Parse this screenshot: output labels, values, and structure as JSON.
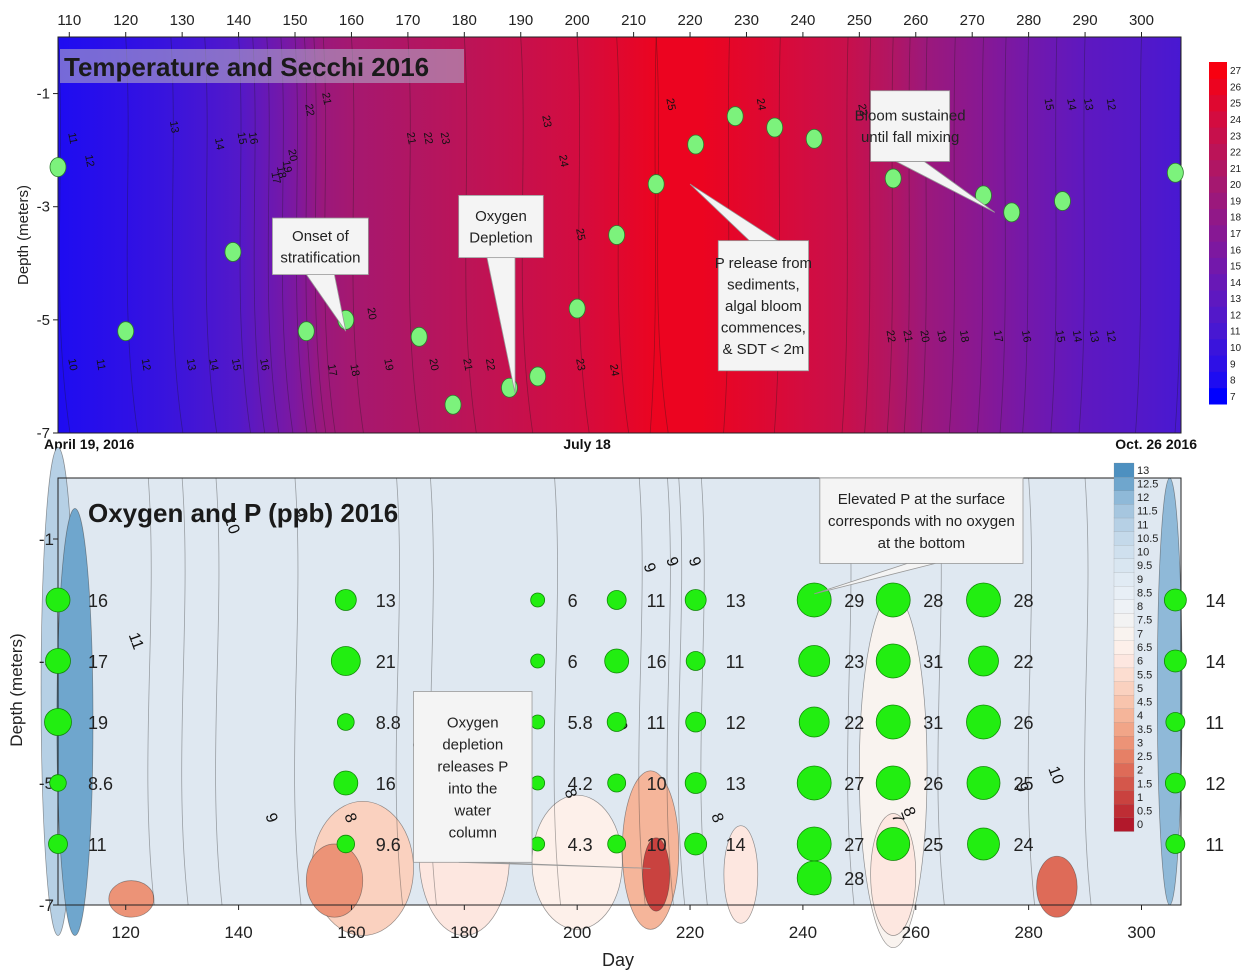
{
  "chart_data": [
    {
      "type": "heatmap",
      "title": "Temperature and Secchi 2016",
      "xlabel": "",
      "ylabel": "Depth (meters)",
      "xlim": [
        108,
        307
      ],
      "ylim": [
        -7,
        0
      ],
      "x_ticks": [
        110,
        120,
        130,
        140,
        150,
        160,
        170,
        180,
        190,
        200,
        210,
        220,
        230,
        240,
        250,
        260,
        270,
        280,
        290,
        300
      ],
      "y_ticks": [
        -1,
        -3,
        -5,
        -7
      ],
      "x_axis_position": "top",
      "date_labels": [
        {
          "x": 108,
          "text": "April 19, 2016"
        },
        {
          "x": 189,
          "text": "July 18"
        },
        {
          "x": 307,
          "text": "Oct. 26 2016"
        }
      ],
      "colorbar": {
        "values": [
          7,
          8,
          9,
          10,
          11,
          12,
          13,
          14,
          15,
          16,
          17,
          18,
          19,
          20,
          21,
          22,
          23,
          24,
          25,
          26,
          27
        ],
        "colors": [
          "#0000ff",
          "#1e0cf1",
          "#2e10e6",
          "#3a14dc",
          "#4818d2",
          "#5318c9",
          "#5e18c0",
          "#6818b6",
          "#7318ab",
          "#7d18a0",
          "#871894",
          "#911888",
          "#9b187c",
          "#a51870",
          "#b01664",
          "#bb1458",
          "#c7104c",
          "#d30c40",
          "#df0830",
          "#ec0420",
          "#f80010"
        ]
      },
      "temperature_profile": {
        "days": [
          108,
          120,
          128,
          140,
          150,
          155,
          160,
          170,
          180,
          190,
          200,
          207,
          214,
          222,
          232,
          240,
          248,
          256,
          262,
          272,
          280,
          290,
          300,
          307
        ],
        "surface_temp_c": [
          8,
          9,
          10,
          12,
          16,
          19,
          20,
          21,
          22,
          23,
          24,
          25,
          26,
          25.5,
          24.5,
          23.5,
          23,
          21,
          19,
          17,
          15,
          13,
          12,
          11
        ]
      },
      "secchi_points": [
        {
          "x": 108,
          "y": -2.3
        },
        {
          "x": 120,
          "y": -5.2
        },
        {
          "x": 139,
          "y": -3.8
        },
        {
          "x": 152,
          "y": -5.2
        },
        {
          "x": 159,
          "y": -5.0
        },
        {
          "x": 172,
          "y": -5.3
        },
        {
          "x": 178,
          "y": -6.5
        },
        {
          "x": 188,
          "y": -6.2
        },
        {
          "x": 193,
          "y": -6.0
        },
        {
          "x": 200,
          "y": -4.8
        },
        {
          "x": 207,
          "y": -3.5
        },
        {
          "x": 214,
          "y": -2.6
        },
        {
          "x": 221,
          "y": -1.9
        },
        {
          "x": 228,
          "y": -1.4
        },
        {
          "x": 235,
          "y": -1.6
        },
        {
          "x": 242,
          "y": -1.8
        },
        {
          "x": 256,
          "y": -2.5
        },
        {
          "x": 272,
          "y": -2.8
        },
        {
          "x": 277,
          "y": -3.1
        },
        {
          "x": 286,
          "y": -2.9
        },
        {
          "x": 306,
          "y": -2.4
        }
      ],
      "contour_labels": [
        {
          "x": 110,
          "y": -1.8,
          "text": "11"
        },
        {
          "x": 113,
          "y": -2.2,
          "text": "12"
        },
        {
          "x": 128,
          "y": -1.6,
          "text": "13"
        },
        {
          "x": 136,
          "y": -1.9,
          "text": "14"
        },
        {
          "x": 140,
          "y": -1.8,
          "text": "15"
        },
        {
          "x": 142,
          "y": -1.8,
          "text": "16"
        },
        {
          "x": 146,
          "y": -2.5,
          "text": "17"
        },
        {
          "x": 147,
          "y": -2.4,
          "text": "18"
        },
        {
          "x": 148,
          "y": -2.3,
          "text": "19"
        },
        {
          "x": 149,
          "y": -2.1,
          "text": "20"
        },
        {
          "x": 152,
          "y": -1.3,
          "text": "22"
        },
        {
          "x": 155,
          "y": -1.1,
          "text": "21"
        },
        {
          "x": 170,
          "y": -1.8,
          "text": "21"
        },
        {
          "x": 173,
          "y": -1.8,
          "text": "22"
        },
        {
          "x": 176,
          "y": -1.8,
          "text": "23"
        },
        {
          "x": 194,
          "y": -1.5,
          "text": "23"
        },
        {
          "x": 197,
          "y": -2.2,
          "text": "24"
        },
        {
          "x": 200,
          "y": -3.5,
          "text": "25"
        },
        {
          "x": 216,
          "y": -1.2,
          "text": "25"
        },
        {
          "x": 232,
          "y": -1.2,
          "text": "24"
        },
        {
          "x": 250,
          "y": -1.3,
          "text": "23"
        },
        {
          "x": 283,
          "y": -1.2,
          "text": "15"
        },
        {
          "x": 287,
          "y": -1.2,
          "text": "14"
        },
        {
          "x": 290,
          "y": -1.2,
          "text": "13"
        },
        {
          "x": 294,
          "y": -1.2,
          "text": "12"
        },
        {
          "x": 163,
          "y": -4.9,
          "text": "20"
        },
        {
          "x": 110,
          "y": -5.8,
          "text": "10"
        },
        {
          "x": 115,
          "y": -5.8,
          "text": "11"
        },
        {
          "x": 123,
          "y": -5.8,
          "text": "12"
        },
        {
          "x": 131,
          "y": -5.8,
          "text": "13"
        },
        {
          "x": 135,
          "y": -5.8,
          "text": "14"
        },
        {
          "x": 139,
          "y": -5.8,
          "text": "15"
        },
        {
          "x": 144,
          "y": -5.8,
          "text": "16"
        },
        {
          "x": 156,
          "y": -5.9,
          "text": "17"
        },
        {
          "x": 160,
          "y": -5.9,
          "text": "18"
        },
        {
          "x": 166,
          "y": -5.8,
          "text": "19"
        },
        {
          "x": 174,
          "y": -5.8,
          "text": "20"
        },
        {
          "x": 180,
          "y": -5.8,
          "text": "21"
        },
        {
          "x": 184,
          "y": -5.8,
          "text": "22"
        },
        {
          "x": 200,
          "y": -5.8,
          "text": "23"
        },
        {
          "x": 206,
          "y": -5.9,
          "text": "24"
        },
        {
          "x": 255,
          "y": -5.3,
          "text": "22"
        },
        {
          "x": 258,
          "y": -5.3,
          "text": "21"
        },
        {
          "x": 261,
          "y": -5.3,
          "text": "20"
        },
        {
          "x": 264,
          "y": -5.3,
          "text": "19"
        },
        {
          "x": 268,
          "y": -5.3,
          "text": "18"
        },
        {
          "x": 274,
          "y": -5.3,
          "text": "17"
        },
        {
          "x": 279,
          "y": -5.3,
          "text": "16"
        },
        {
          "x": 285,
          "y": -5.3,
          "text": "15"
        },
        {
          "x": 288,
          "y": -5.3,
          "text": "14"
        },
        {
          "x": 291,
          "y": -5.3,
          "text": "13"
        },
        {
          "x": 294,
          "y": -5.3,
          "text": "12"
        }
      ],
      "annotations": [
        {
          "text": [
            "Onset of",
            "stratification"
          ],
          "x0": 146,
          "y0": -3.2,
          "x1": 163,
          "y1": -4.2,
          "tip_x": 159,
          "tip_y": -5.2
        },
        {
          "text": [
            "Oxygen",
            "Depletion"
          ],
          "x0": 179,
          "y0": -2.8,
          "x1": 194,
          "y1": -3.9,
          "tip_x": 189,
          "tip_y": -6.3
        },
        {
          "text": [
            "P release from",
            "sediments,",
            "algal bloom",
            "commences,",
            "& SDT < 2m"
          ],
          "x0": 225,
          "y0": -3.6,
          "x1": 241,
          "y1": -5.9,
          "tip_x": 220,
          "tip_y": -2.6
        },
        {
          "text": [
            "Bloom sustained",
            "until fall mixing"
          ],
          "x0": 252,
          "y0": -0.95,
          "x1": 266,
          "y1": -2.2,
          "tip_x": 274,
          "tip_y": -3.1
        }
      ]
    },
    {
      "type": "heatmap",
      "title": "Oxygen and P (ppb) 2016",
      "xlabel": "Day",
      "ylabel": "Depth (meters)",
      "xlim": [
        108,
        307
      ],
      "ylim": [
        -7,
        0
      ],
      "x_ticks": [
        120,
        140,
        160,
        180,
        200,
        220,
        240,
        260,
        280,
        300
      ],
      "y_ticks": [
        -1,
        -3,
        -5,
        -7
      ],
      "colorbar": {
        "values": [
          0,
          0.5,
          1,
          1.5,
          2,
          2.5,
          3,
          3.5,
          4,
          4.5,
          5,
          5.5,
          6,
          6.5,
          7,
          7.5,
          8,
          8.5,
          9,
          9.5,
          10,
          10.5,
          11,
          11.5,
          12,
          12.5,
          13
        ],
        "colors": [
          "#b2182b",
          "#be2d34",
          "#c9423f",
          "#d4574b",
          "#de6b58",
          "#e68066",
          "#ec9377",
          "#f1a588",
          "#f5b59a",
          "#f8c4ad",
          "#fad1bf",
          "#fcddd0",
          "#fde7e0",
          "#fdf0ea",
          "#f9f3ef",
          "#f3f3f3",
          "#eef2f6",
          "#e8eff6",
          "#e1ebf4",
          "#d9e6f1",
          "#cfe0ee",
          "#c4d9ea",
          "#b6d0e5",
          "#a6c6df",
          "#8fb9d8",
          "#6fa6cd",
          "#4d90c0"
        ]
      },
      "p_points": [
        {
          "day": 108,
          "depth": -2,
          "value": 16
        },
        {
          "day": 108,
          "depth": -3,
          "value": 17
        },
        {
          "day": 108,
          "depth": -4,
          "value": 19
        },
        {
          "day": 108,
          "depth": -5,
          "value": 8.6
        },
        {
          "day": 108,
          "depth": -6,
          "value": 11
        },
        {
          "day": 159,
          "depth": -2,
          "value": 13
        },
        {
          "day": 159,
          "depth": -3,
          "value": 21
        },
        {
          "day": 159,
          "depth": -4,
          "value": 8.8
        },
        {
          "day": 159,
          "depth": -5,
          "value": 16
        },
        {
          "day": 159,
          "depth": -6,
          "value": 9.6
        },
        {
          "day": 193,
          "depth": -2,
          "value": 6
        },
        {
          "day": 193,
          "depth": -3,
          "value": 6
        },
        {
          "day": 193,
          "depth": -4,
          "value": 5.8
        },
        {
          "day": 193,
          "depth": -5,
          "value": 4.2
        },
        {
          "day": 193,
          "depth": -6,
          "value": 4.3
        },
        {
          "day": 207,
          "depth": -2,
          "value": 11
        },
        {
          "day": 207,
          "depth": -3,
          "value": 16
        },
        {
          "day": 207,
          "depth": -4,
          "value": 11
        },
        {
          "day": 207,
          "depth": -5,
          "value": 10
        },
        {
          "day": 207,
          "depth": -6,
          "value": 10
        },
        {
          "day": 221,
          "depth": -2,
          "value": 13
        },
        {
          "day": 221,
          "depth": -3,
          "value": 11
        },
        {
          "day": 221,
          "depth": -4,
          "value": 12
        },
        {
          "day": 221,
          "depth": -5,
          "value": 13
        },
        {
          "day": 221,
          "depth": -6,
          "value": 14
        },
        {
          "day": 242,
          "depth": -2,
          "value": 29
        },
        {
          "day": 242,
          "depth": -3,
          "value": 23
        },
        {
          "day": 242,
          "depth": -4,
          "value": 22
        },
        {
          "day": 242,
          "depth": -5,
          "value": 27
        },
        {
          "day": 242,
          "depth": -6,
          "value": 27
        },
        {
          "day": 242,
          "depth": -6.5,
          "value": 28
        },
        {
          "day": 256,
          "depth": -2,
          "value": 28
        },
        {
          "day": 256,
          "depth": -3,
          "value": 31
        },
        {
          "day": 256,
          "depth": -4,
          "value": 31
        },
        {
          "day": 256,
          "depth": -5,
          "value": 26
        },
        {
          "day": 256,
          "depth": -6,
          "value": 25
        },
        {
          "day": 272,
          "depth": -2,
          "value": 28
        },
        {
          "day": 272,
          "depth": -3,
          "value": 22
        },
        {
          "day": 272,
          "depth": -4,
          "value": 26
        },
        {
          "day": 272,
          "depth": -5,
          "value": 25
        },
        {
          "day": 272,
          "depth": -6,
          "value": 24
        },
        {
          "day": 306,
          "depth": -2,
          "value": 14
        },
        {
          "day": 306,
          "depth": -3,
          "value": 14
        },
        {
          "day": 306,
          "depth": -4,
          "value": 11
        },
        {
          "day": 306,
          "depth": -5,
          "value": 12
        },
        {
          "day": 306,
          "depth": -6,
          "value": 11
        }
      ],
      "contour_labels": [
        {
          "x": 138,
          "y": -0.8,
          "text": "10"
        },
        {
          "x": 150,
          "y": -0.6,
          "text": "9"
        },
        {
          "x": 121,
          "y": -2.7,
          "text": "11"
        },
        {
          "x": 212,
          "y": -1.5,
          "text": "9"
        },
        {
          "x": 216,
          "y": -1.4,
          "text": "9"
        },
        {
          "x": 220,
          "y": -1.4,
          "text": "9"
        },
        {
          "x": 171,
          "y": -4.4,
          "text": "9"
        },
        {
          "x": 207,
          "y": -4.1,
          "text": "9"
        },
        {
          "x": 145,
          "y": -5.6,
          "text": "9"
        },
        {
          "x": 159,
          "y": -5.6,
          "text": "8"
        },
        {
          "x": 198,
          "y": -5.2,
          "text": "8"
        },
        {
          "x": 224,
          "y": -5.6,
          "text": "8"
        },
        {
          "x": 256,
          "y": -5.6,
          "text": "7"
        },
        {
          "x": 258,
          "y": -5.5,
          "text": "8"
        },
        {
          "x": 278,
          "y": -5.1,
          "text": "9"
        },
        {
          "x": 284,
          "y": -4.9,
          "text": "10"
        }
      ],
      "annotations": [
        {
          "text": [
            "Elevated P at the surface",
            "corresponds with no oxygen",
            "at the bottom"
          ],
          "x0": 243,
          "y0": 0,
          "x1": 279,
          "y1": -1.4,
          "tip_x": 242,
          "tip_y": -1.9
        },
        {
          "text": [
            "Oxygen",
            "depletion",
            "releases P",
            "into the",
            "water",
            "column"
          ],
          "x0": 171,
          "y0": -3.5,
          "x1": 192,
          "y1": -6.3,
          "tip_x": 213,
          "tip_y": -6.4
        }
      ]
    }
  ]
}
